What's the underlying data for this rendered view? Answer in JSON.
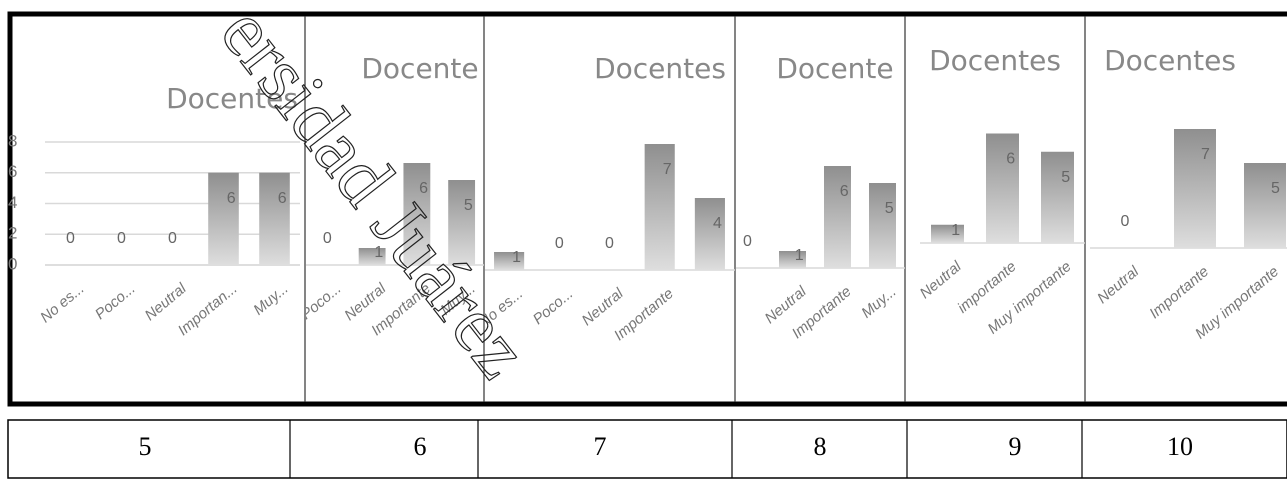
{
  "chart_data": [
    {
      "type": "bar",
      "title": "Docentes",
      "categories": [
        "No es...",
        "Poco...",
        "Neutral",
        "Importan...",
        "Muy..."
      ],
      "values": [
        0,
        0,
        0,
        6,
        6
      ],
      "ylim": [
        0,
        8
      ],
      "yticks": [
        0,
        2,
        4,
        6,
        8
      ],
      "grid": true
    },
    {
      "type": "bar",
      "title": "Docente",
      "categories": [
        "Poco...",
        "Neutral",
        "Importante",
        "Muy..."
      ],
      "values": [
        0,
        1,
        6,
        5
      ],
      "ylim": [
        0,
        8
      ]
    },
    {
      "type": "bar",
      "title": "Docentes",
      "categories": [
        "No es...",
        "Poco...",
        "Neutral",
        "Importante",
        null
      ],
      "values": [
        1,
        0,
        0,
        7,
        4
      ],
      "ylim": [
        0,
        8
      ]
    },
    {
      "type": "bar",
      "title": "Docente",
      "categories": [
        null,
        "Neutral",
        "Importante",
        "Muy..."
      ],
      "values": [
        0,
        1,
        6,
        5
      ],
      "ylim": [
        0,
        8
      ]
    },
    {
      "type": "bar",
      "title": "Docentes",
      "categories": [
        "Neutral",
        "importante",
        "Muy importante"
      ],
      "values": [
        1,
        6,
        5
      ],
      "ylim": [
        0,
        8
      ]
    },
    {
      "type": "bar",
      "title": "Docentes",
      "categories": [
        "Neutral",
        "Importante",
        "Muy importante"
      ],
      "values": [
        0,
        7,
        5
      ],
      "ylim": [
        0,
        8
      ]
    }
  ],
  "watermark": "ersidad Juárez",
  "table": {
    "cells": [
      "5",
      "6",
      "7",
      "8",
      "9",
      "10"
    ]
  }
}
